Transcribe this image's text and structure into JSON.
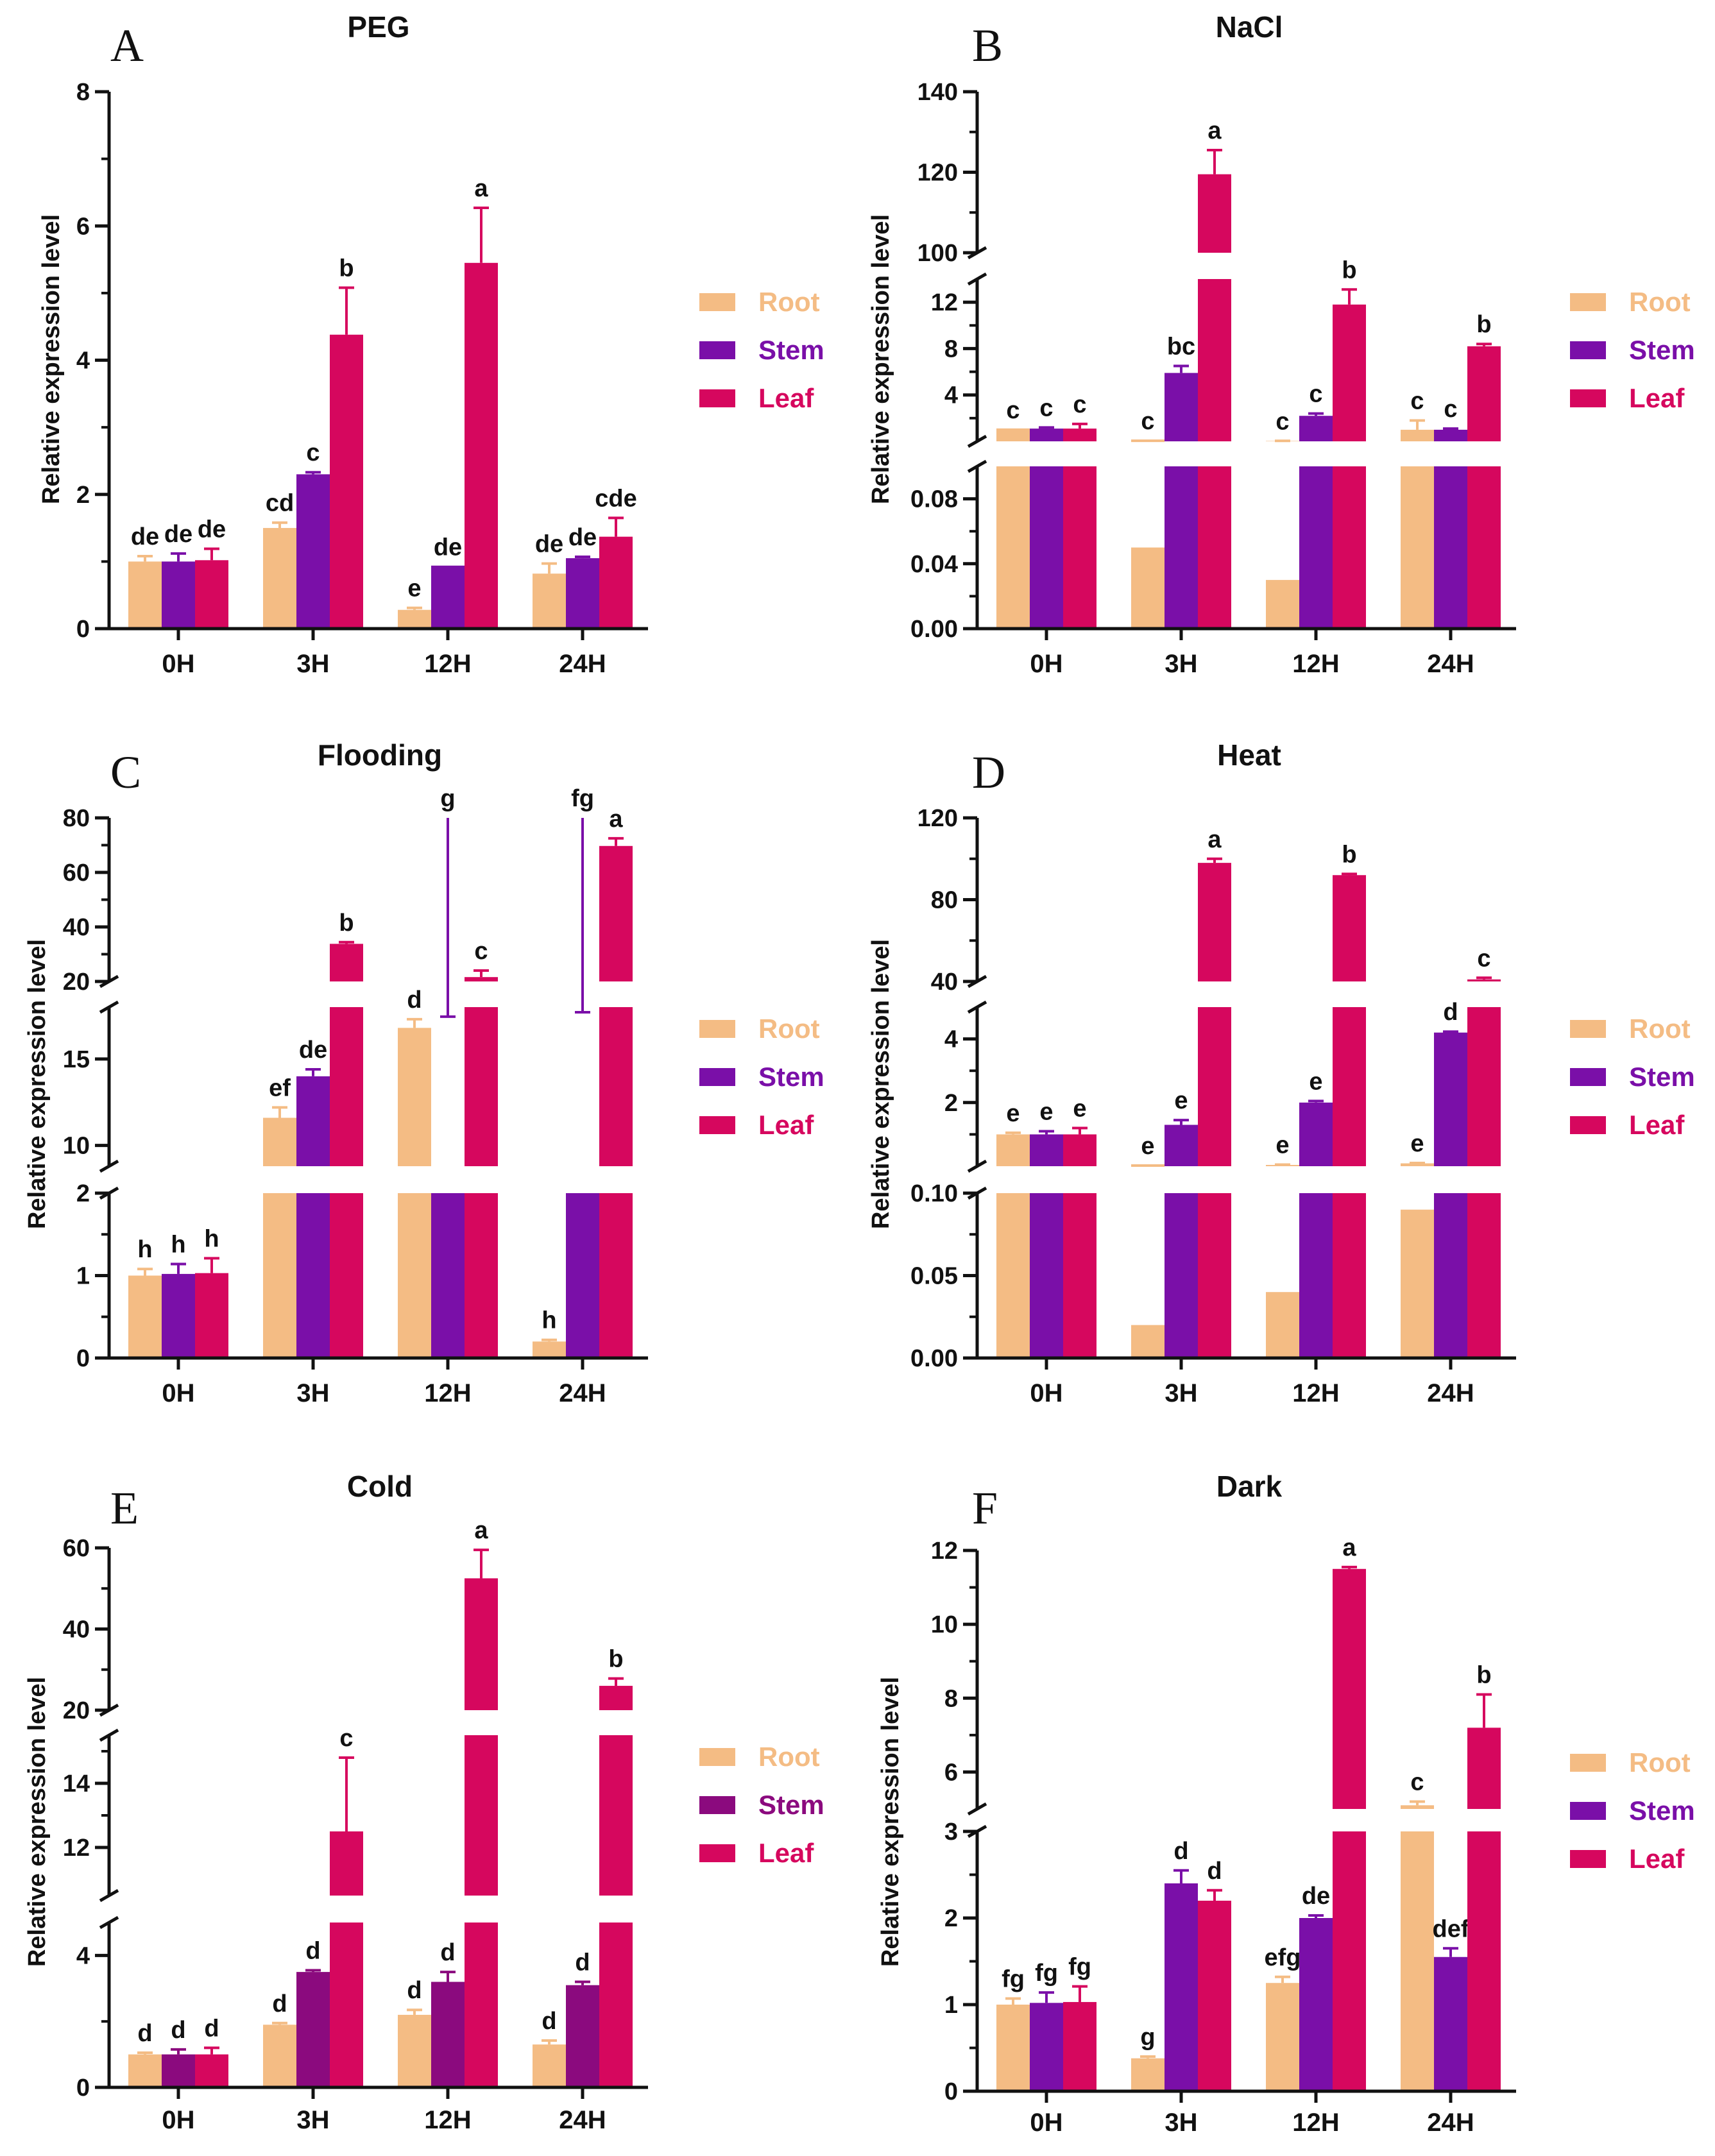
{
  "colors": {
    "root": "#F4BC84",
    "stem": "#7A0FA8",
    "stem_cold": "#8B0A7E",
    "leaf": "#D6075E"
  },
  "chart_data": [
    {
      "panel": "A",
      "title": "PEG",
      "type": "bar",
      "ylabel": "Relative expression level",
      "categories": [
        "0H",
        "3H",
        "12H",
        "24H"
      ],
      "series_names": [
        "Root",
        "Stem",
        "Leaf"
      ],
      "segments": [
        {
          "min": 0,
          "max": 8,
          "ticks": [
            0,
            2,
            4,
            6,
            8
          ],
          "minor": [
            1,
            3,
            5,
            7
          ]
        }
      ],
      "series": [
        {
          "name": "Root",
          "values": [
            1.0,
            1.5,
            0.28,
            0.82
          ],
          "errors": [
            0.08,
            0.08,
            0.03,
            0.15
          ]
        },
        {
          "name": "Stem",
          "values": [
            1.0,
            2.3,
            0.92,
            1.05
          ],
          "errors": [
            0.12,
            0.03,
            0.0,
            0.02
          ]
        },
        {
          "name": "Leaf",
          "values": [
            1.02,
            4.38,
            5.45,
            1.37
          ],
          "errors": [
            0.17,
            0.7,
            0.82,
            0.28
          ]
        }
      ],
      "labels": [
        [
          "de",
          "de",
          "de"
        ],
        [
          "cd",
          "c",
          "b"
        ],
        [
          "e",
          "de",
          "a"
        ],
        [
          "de",
          "de",
          "cde"
        ]
      ]
    },
    {
      "panel": "B",
      "title": "NaCl",
      "type": "bar",
      "ylabel": "Relative expression level",
      "categories": [
        "0H",
        "3H",
        "12H",
        "24H"
      ],
      "series_names": [
        "Root",
        "Stem",
        "Leaf"
      ],
      "segments": [
        {
          "min": 0,
          "max": 0.1,
          "ticks": [
            0.0,
            0.04,
            0.08
          ],
          "tick_labels": [
            "0.00",
            "0.04",
            "0.08"
          ],
          "minor": [
            0.02,
            0.06
          ]
        },
        {
          "min": 0,
          "max": 14,
          "ticks": [
            4,
            8,
            12
          ],
          "minor": [
            2,
            6,
            10
          ]
        },
        {
          "min": 100,
          "max": 140,
          "ticks": [
            100,
            120,
            140
          ],
          "minor": [
            110,
            130
          ]
        }
      ],
      "series": [
        {
          "name": "Root",
          "values": [
            1.0,
            0.05,
            0.03,
            1.0
          ],
          "errors": [
            0.0,
            0.0,
            0.01,
            0.8
          ]
        },
        {
          "name": "Stem",
          "values": [
            1.1,
            5.9,
            2.2,
            1.0
          ],
          "errors": [
            0.1,
            0.6,
            0.2,
            0.1
          ]
        },
        {
          "name": "Leaf",
          "values": [
            1.1,
            119.5,
            11.8,
            8.2
          ],
          "errors": [
            0.4,
            6.0,
            1.3,
            0.2
          ]
        }
      ],
      "labels": [
        [
          "c",
          "c",
          "c"
        ],
        [
          "c",
          "bc",
          "a"
        ],
        [
          "c",
          "c",
          "b"
        ],
        [
          "c",
          "c",
          "b"
        ]
      ]
    },
    {
      "panel": "C",
      "title": "Flooding",
      "type": "bar",
      "ylabel": "Relative expression level",
      "categories": [
        "0H",
        "3H",
        "12H",
        "24H"
      ],
      "series_names": [
        "Root",
        "Stem",
        "Leaf"
      ],
      "segments": [
        {
          "min": 0,
          "max": 2,
          "ticks": [
            0,
            1,
            2
          ],
          "minor": [
            0.5,
            1.5
          ]
        },
        {
          "min": 8.8,
          "max": 18,
          "ticks": [
            10,
            15
          ],
          "minor": []
        },
        {
          "min": 20,
          "max": 80,
          "ticks": [
            20,
            40,
            60,
            80
          ],
          "minor": [
            30,
            50,
            70
          ]
        }
      ],
      "series": [
        {
          "name": "Root",
          "values": [
            1.0,
            11.6,
            16.8,
            0.2
          ],
          "errors": [
            0.08,
            0.6,
            0.5,
            0.02
          ]
        },
        {
          "name": "Stem",
          "values": [
            1.02,
            14.0,
            6.9,
            8.4
          ],
          "errors": [
            0.12,
            0.4,
            0.2,
            0.3
          ]
        },
        {
          "name": "Leaf",
          "values": [
            1.03,
            33.8,
            21.6,
            69.7
          ],
          "errors": [
            0.18,
            0.6,
            2.4,
            2.8
          ]
        }
      ],
      "labels": [
        [
          "h",
          "h",
          "h"
        ],
        [
          "ef",
          "de",
          "b"
        ],
        [
          "d",
          "g",
          "c"
        ],
        [
          "h",
          "fg",
          "a"
        ]
      ]
    },
    {
      "panel": "D",
      "title": "Heat",
      "type": "bar",
      "ylabel": "Relative expression level",
      "categories": [
        "0H",
        "3H",
        "12H",
        "24H"
      ],
      "series_names": [
        "Root",
        "Stem",
        "Leaf"
      ],
      "segments": [
        {
          "min": 0,
          "max": 0.1,
          "ticks": [
            0.0,
            0.05,
            0.1
          ],
          "tick_labels": [
            "0.00",
            "0.05",
            "0.10"
          ],
          "minor": [
            0.025,
            0.075
          ]
        },
        {
          "min": 0,
          "max": 5,
          "ticks": [
            2,
            4
          ],
          "minor": [
            1,
            3
          ]
        },
        {
          "min": 40,
          "max": 120,
          "ticks": [
            40,
            80,
            120
          ],
          "minor": [
            60,
            100
          ]
        }
      ],
      "series": [
        {
          "name": "Root",
          "values": [
            1.0,
            0.02,
            0.04,
            0.09
          ],
          "errors": [
            0.05,
            0.0,
            0.01,
            0.01
          ]
        },
        {
          "name": "Stem",
          "values": [
            1.0,
            1.3,
            2.0,
            4.2
          ],
          "errors": [
            0.1,
            0.15,
            0.05,
            0.03
          ]
        },
        {
          "name": "Leaf",
          "values": [
            1.0,
            98.0,
            92.0,
            41.0
          ],
          "errors": [
            0.2,
            2.0,
            0.6,
            0.8
          ]
        }
      ],
      "labels": [
        [
          "e",
          "e",
          "e"
        ],
        [
          "e",
          "e",
          "a"
        ],
        [
          "e",
          "e",
          "b"
        ],
        [
          "e",
          "d",
          "c"
        ]
      ]
    },
    {
      "panel": "E",
      "title": "Cold",
      "type": "bar",
      "ylabel": "Relative expression level",
      "categories": [
        "0H",
        "3H",
        "12H",
        "24H"
      ],
      "series_names": [
        "Root",
        "Stem",
        "Leaf"
      ],
      "segments": [
        {
          "min": 0,
          "max": 5,
          "ticks": [
            0,
            4
          ],
          "minor": [
            2
          ]
        },
        {
          "min": 10.5,
          "max": 15.5,
          "ticks": [
            12,
            14
          ],
          "minor": [
            13,
            15
          ]
        },
        {
          "min": 20,
          "max": 60,
          "ticks": [
            20,
            40,
            60
          ],
          "minor": [
            30,
            50
          ]
        }
      ],
      "series": [
        {
          "name": "Root",
          "values": [
            1.0,
            1.9,
            2.2,
            1.3
          ],
          "errors": [
            0.05,
            0.05,
            0.15,
            0.12
          ]
        },
        {
          "name": "Stem",
          "values": [
            1.0,
            3.5,
            3.2,
            3.1
          ],
          "errors": [
            0.15,
            0.05,
            0.3,
            0.1
          ]
        },
        {
          "name": "Leaf",
          "values": [
            1.0,
            12.5,
            52.5,
            26.0
          ],
          "errors": [
            0.2,
            2.3,
            7.0,
            1.8
          ]
        }
      ],
      "labels": [
        [
          "d",
          "d",
          "d"
        ],
        [
          "d",
          "d",
          "c"
        ],
        [
          "d",
          "d",
          "a"
        ],
        [
          "d",
          "d",
          "b"
        ]
      ]
    },
    {
      "panel": "F",
      "title": "Dark",
      "type": "bar",
      "ylabel": "Relative expression level",
      "categories": [
        "0H",
        "3H",
        "12H",
        "24H"
      ],
      "series_names": [
        "Root",
        "Stem",
        "Leaf"
      ],
      "segments": [
        {
          "min": 0,
          "max": 3,
          "ticks": [
            0,
            1,
            2,
            3
          ],
          "minor": [
            0.5,
            1.5,
            2.5
          ]
        },
        {
          "min": 5,
          "max": 12,
          "ticks": [
            6,
            8,
            10,
            12
          ],
          "minor": [
            7,
            9,
            11
          ]
        }
      ],
      "series": [
        {
          "name": "Root",
          "values": [
            1.0,
            0.38,
            1.25,
            5.1
          ],
          "errors": [
            0.07,
            0.02,
            0.07,
            0.1
          ]
        },
        {
          "name": "Stem",
          "values": [
            1.02,
            2.4,
            2.0,
            1.55
          ],
          "errors": [
            0.12,
            0.15,
            0.03,
            0.1
          ]
        },
        {
          "name": "Leaf",
          "values": [
            1.03,
            2.2,
            11.5,
            7.2
          ],
          "errors": [
            0.18,
            0.12,
            0.05,
            0.9
          ]
        }
      ],
      "labels": [
        [
          "fg",
          "fg",
          "fg"
        ],
        [
          "g",
          "d",
          "d"
        ],
        [
          "efg",
          "de",
          "a"
        ],
        [
          "c",
          "def",
          "b"
        ]
      ]
    }
  ]
}
